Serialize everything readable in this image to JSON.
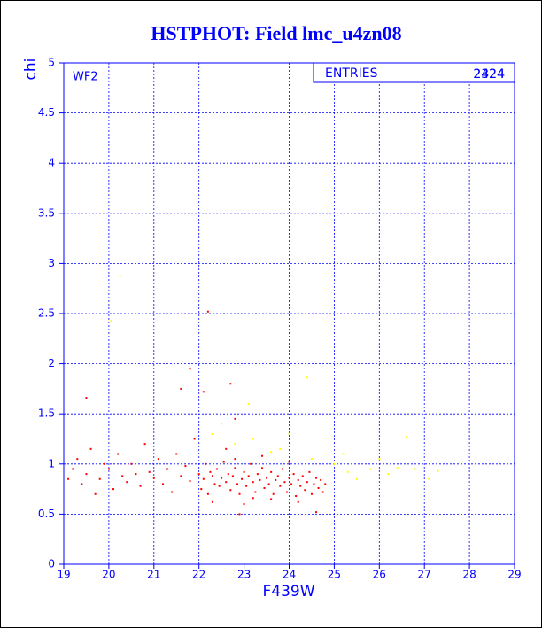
{
  "chart_data": {
    "type": "scatter",
    "title": "HSTPHOT: Field lmc_u4zn08",
    "x_label": "F439W",
    "y_label": "chi",
    "annotation": "WF2",
    "entries_label": "ENTRIES",
    "entries": [
      "2324",
      "2424"
    ],
    "xlim": [
      19,
      29
    ],
    "ylim": [
      0,
      5
    ],
    "xticks": [
      19,
      20,
      21,
      22,
      23,
      24,
      25,
      26,
      27,
      28,
      29
    ],
    "yticks": [
      0,
      0.5,
      1,
      1.5,
      2,
      2.5,
      3,
      3.5,
      4,
      4.5,
      5
    ],
    "grid": true,
    "series": [
      {
        "name": "red",
        "color": "#ff0000",
        "x": [
          19.1,
          19.2,
          19.3,
          19.4,
          19.5,
          19.6,
          19.7,
          19.8,
          19.9,
          20.0,
          20.1,
          20.2,
          20.3,
          20.4,
          20.5,
          20.6,
          20.7,
          20.8,
          20.9,
          21.0,
          21.1,
          21.2,
          21.3,
          21.4,
          21.5,
          21.6,
          21.7,
          21.8,
          21.9,
          22.0,
          22.05,
          22.1,
          22.15,
          22.2,
          22.25,
          22.3,
          22.35,
          22.4,
          22.45,
          22.5,
          22.55,
          22.6,
          22.65,
          22.7,
          22.75,
          22.8,
          22.85,
          22.9,
          22.95,
          23.0,
          23.05,
          23.1,
          23.15,
          23.2,
          23.25,
          23.3,
          23.35,
          23.4,
          23.45,
          23.5,
          23.55,
          23.6,
          23.65,
          23.7,
          23.75,
          23.8,
          23.85,
          23.9,
          23.95,
          24.0,
          24.05,
          24.1,
          24.15,
          24.2,
          24.25,
          24.3,
          24.35,
          24.4,
          24.45,
          24.5,
          24.55,
          24.6,
          24.65,
          24.7,
          24.75,
          24.8,
          22.3,
          23.0,
          23.6,
          24.2,
          22.8,
          23.4,
          24.0,
          22.6,
          23.2,
          19.5,
          21.8,
          22.2,
          22.7,
          22.1,
          21.6,
          22.8,
          24.6,
          22.9
        ],
        "values": [
          0.85,
          0.95,
          1.05,
          0.8,
          0.9,
          1.15,
          0.7,
          0.85,
          1.0,
          0.95,
          0.75,
          1.1,
          0.88,
          0.82,
          1.0,
          0.9,
          0.78,
          1.2,
          0.92,
          0.86,
          1.05,
          0.8,
          0.95,
          0.72,
          1.1,
          0.88,
          0.98,
          0.83,
          1.25,
          0.9,
          0.75,
          0.85,
          1.0,
          0.7,
          0.92,
          0.88,
          0.8,
          0.95,
          0.78,
          0.86,
          1.02,
          0.82,
          0.9,
          0.74,
          0.88,
          0.96,
          0.8,
          0.7,
          0.85,
          0.92,
          0.78,
          0.88,
          1.0,
          0.82,
          0.72,
          0.9,
          0.84,
          0.96,
          0.76,
          0.86,
          0.8,
          0.92,
          0.7,
          0.84,
          0.88,
          0.78,
          0.95,
          0.82,
          0.72,
          0.86,
          0.8,
          0.9,
          0.68,
          0.84,
          0.78,
          0.88,
          0.74,
          0.82,
          0.92,
          0.7,
          0.8,
          0.86,
          0.76,
          0.84,
          0.72,
          0.8,
          0.62,
          0.6,
          0.65,
          0.62,
          1.05,
          1.08,
          1.02,
          1.15,
          0.66,
          1.66,
          1.95,
          2.52,
          1.8,
          1.72,
          1.75,
          1.45,
          0.52,
          0.5
        ]
      },
      {
        "name": "yellow",
        "color": "#ffff00",
        "x": [
          20.05,
          20.25,
          24.4,
          23.1,
          22.3,
          22.8,
          23.2,
          23.6,
          24.0,
          24.5,
          25.0,
          25.3,
          25.5,
          25.8,
          26.0,
          26.2,
          26.4,
          26.6,
          26.8,
          27.1,
          27.3,
          22.5,
          23.8,
          25.2
        ],
        "values": [
          2.43,
          2.88,
          1.86,
          1.6,
          1.3,
          1.2,
          1.25,
          1.12,
          1.3,
          1.05,
          1.0,
          0.92,
          0.85,
          0.95,
          1.05,
          0.9,
          0.96,
          1.27,
          0.95,
          0.85,
          0.93,
          1.4,
          1.15,
          1.1
        ]
      }
    ]
  }
}
